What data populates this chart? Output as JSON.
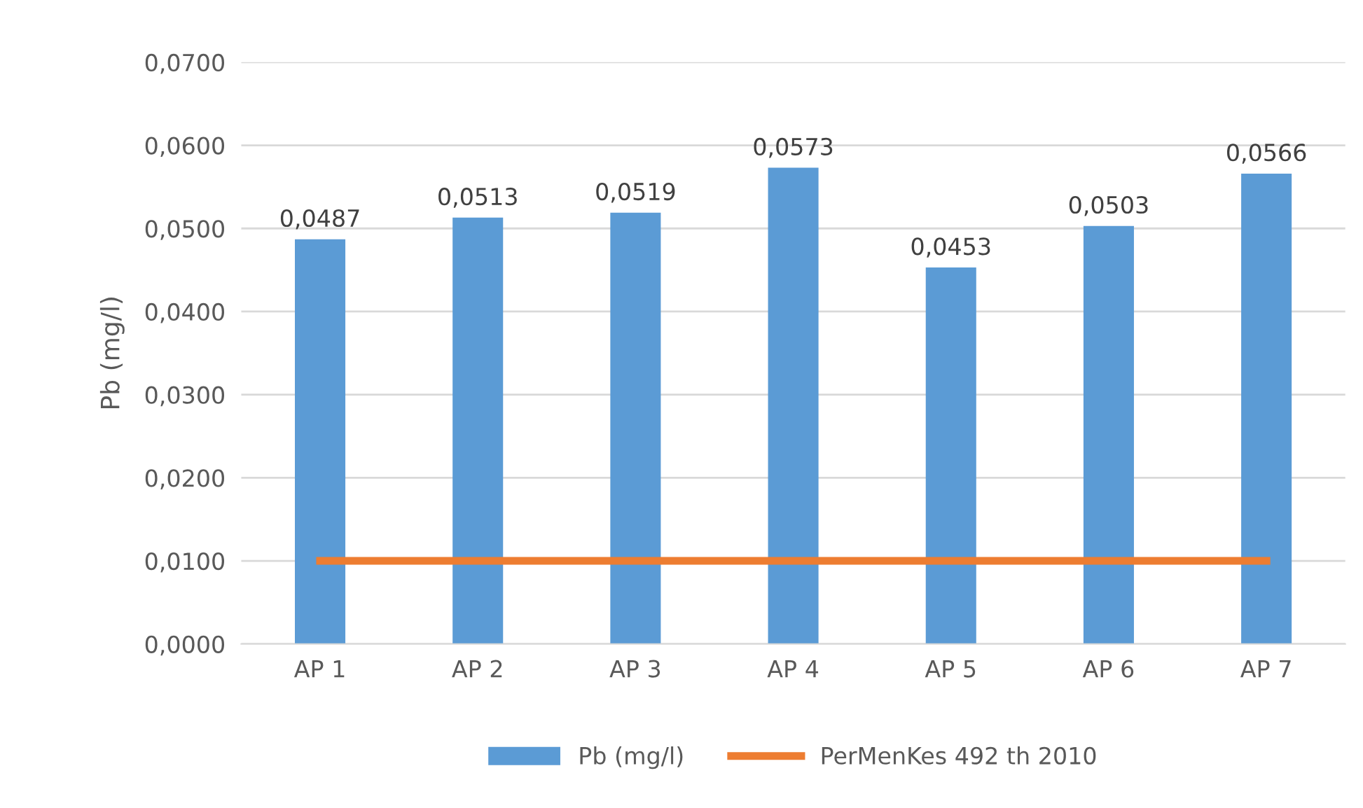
{
  "chart_data": {
    "type": "bar",
    "ylabel": "Pb (mg/l)",
    "categories": [
      "AP 1",
      "AP 2",
      "AP 3",
      "AP 4",
      "AP 5",
      "AP 6",
      "AP 7"
    ],
    "series": [
      {
        "name": "Pb (mg/l)",
        "color": "#5b9bd5",
        "values": [
          0.0487,
          0.0513,
          0.0519,
          0.0573,
          0.0453,
          0.0503,
          0.0566
        ],
        "value_labels": [
          "0,0487",
          "0,0513",
          "0,0519",
          "0,0573",
          "0,0453",
          "0,0503",
          "0,0566"
        ]
      },
      {
        "name": "PerMenKes 492 th 2010",
        "type": "line",
        "color": "#ed7d31",
        "values": [
          0.01,
          0.01,
          0.01,
          0.01,
          0.01,
          0.01,
          0.01
        ]
      }
    ],
    "ylim": [
      0,
      0.07
    ],
    "yticks": [
      {
        "value": 0,
        "label": "0,0000"
      },
      {
        "value": 0.01,
        "label": "0,0100"
      },
      {
        "value": 0.02,
        "label": "0,0200"
      },
      {
        "value": 0.03,
        "label": "0,0300"
      },
      {
        "value": 0.04,
        "label": "0,0400"
      },
      {
        "value": 0.05,
        "label": "0,0500"
      },
      {
        "value": 0.06,
        "label": "0,0600"
      },
      {
        "value": 0.07,
        "label": "0,0700"
      }
    ],
    "grid": "y",
    "legend": "bottom",
    "marker": "none",
    "line_style": "solid"
  }
}
